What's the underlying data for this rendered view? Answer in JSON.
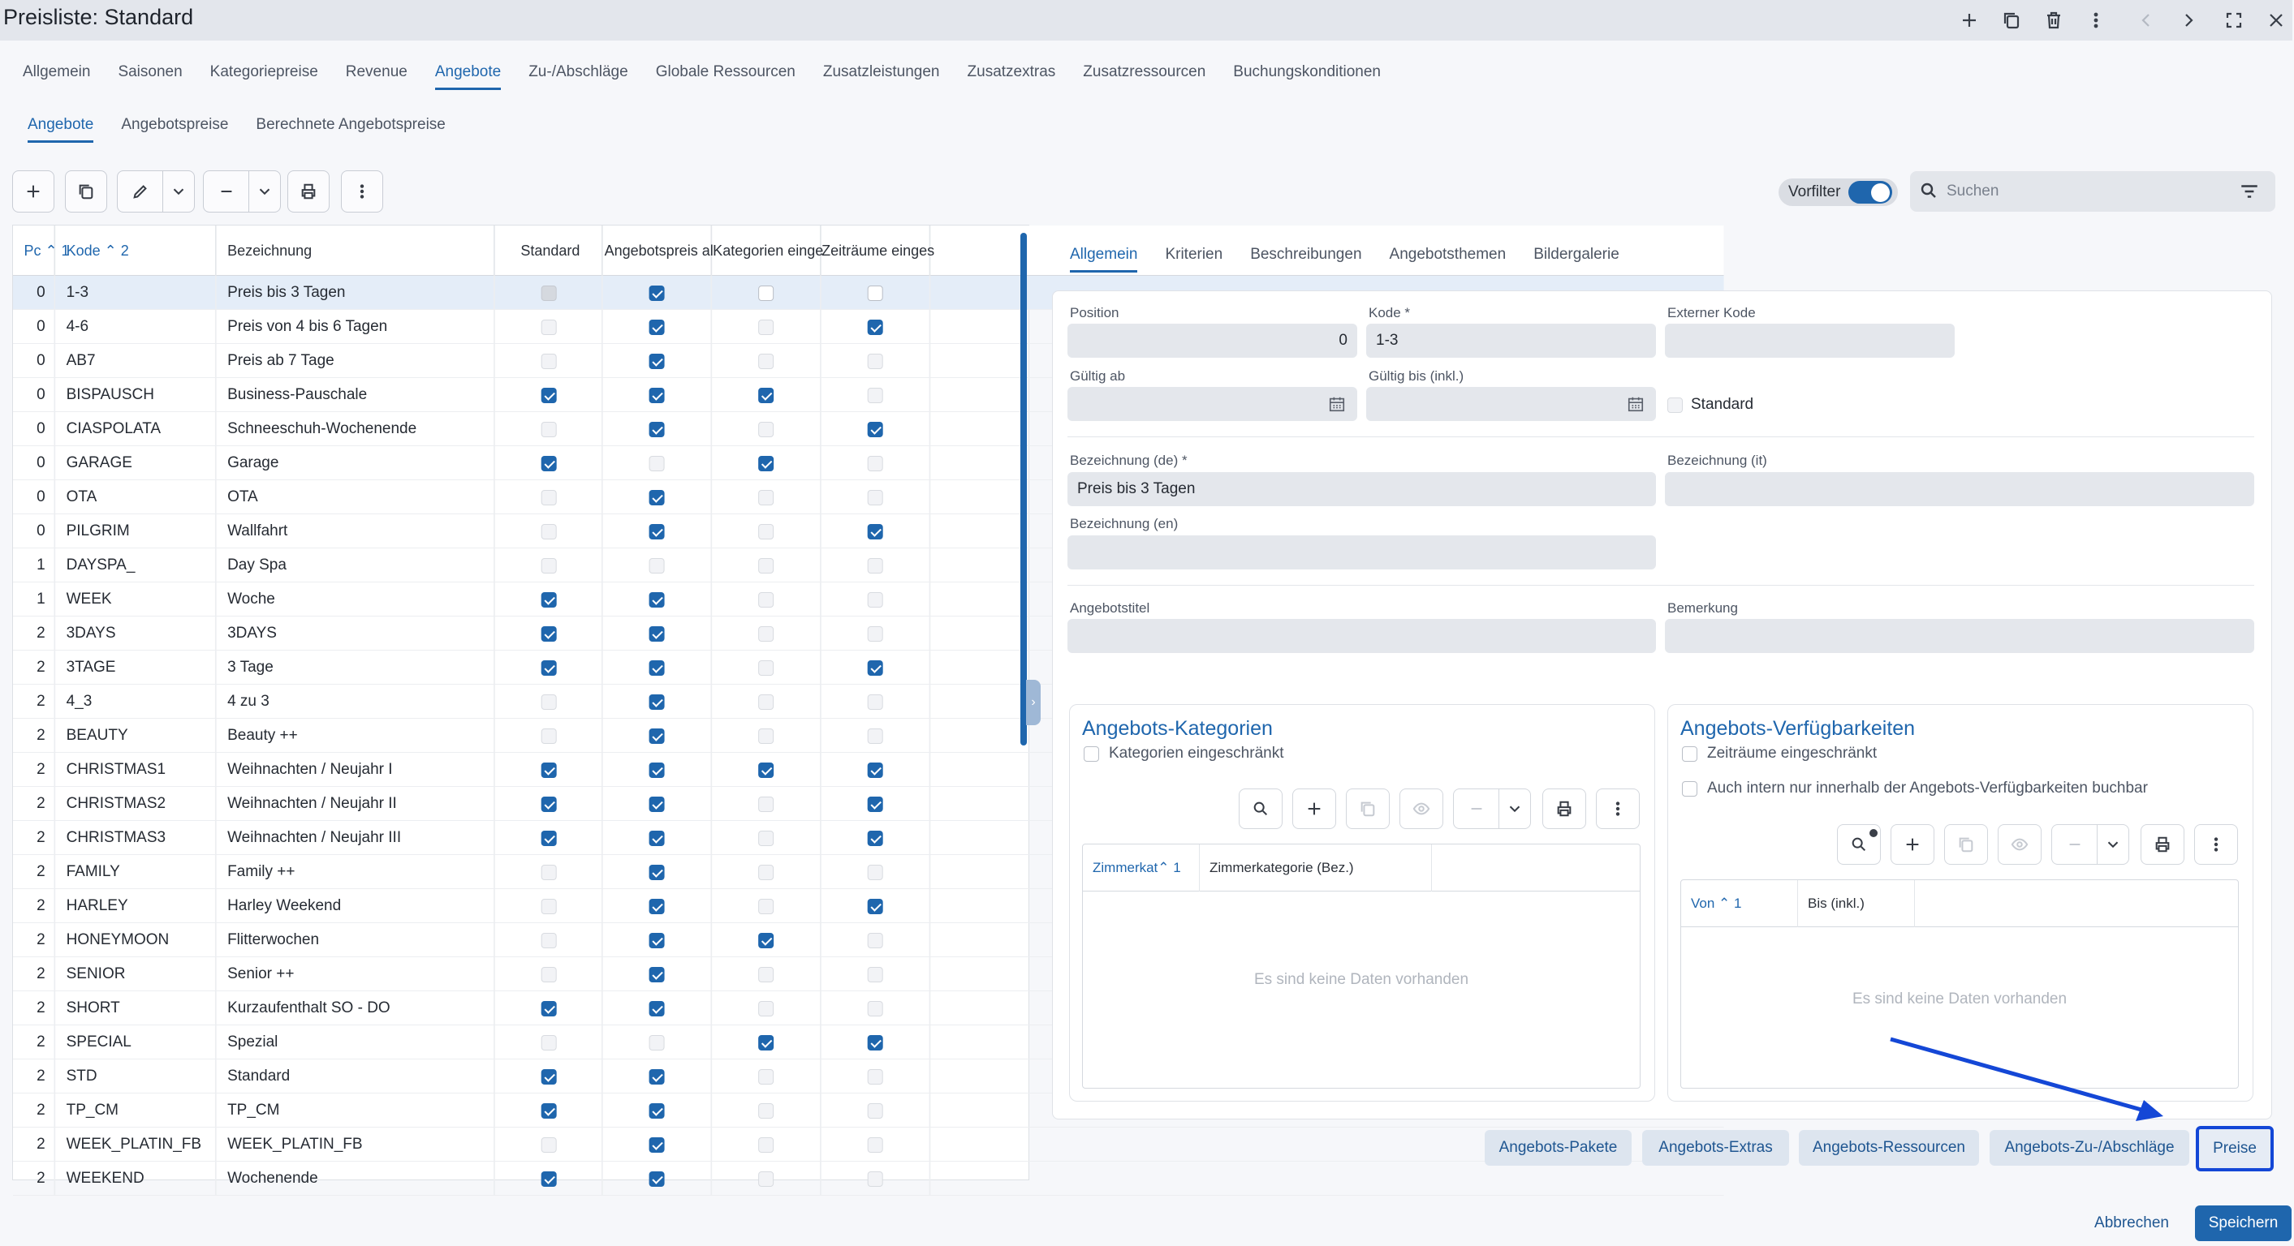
{
  "window": {
    "title": "Preisliste: Standard"
  },
  "main_tabs": [
    "Allgemein",
    "Saisonen",
    "Kategoriepreise",
    "Revenue",
    "Angebote",
    "Zu-/Abschläge",
    "Globale Ressourcen",
    "Zusatzleistungen",
    "Zusatzextras",
    "Zusatzressourcen",
    "Buchungskonditionen"
  ],
  "main_tabs_active": "Angebote",
  "sub_tabs": [
    "Angebote",
    "Angebotspreise",
    "Berechnete Angebotspreise"
  ],
  "sub_tabs_active": "Angebote",
  "toolbar": {
    "vorfilter_label": "Vorfilter",
    "vorfilter_on": true,
    "search_placeholder": "Suchen"
  },
  "grid": {
    "columns": [
      "Pc ⌃ 1",
      "Kode ⌃ 2",
      "Bezeichnung",
      "Standard",
      "Angebotspreis al",
      "Kategorien einge",
      "Zeiträume einges"
    ],
    "rows": [
      {
        "pos": "0",
        "code": "1-3",
        "name": "Preis bis 3 Tagen",
        "std": false,
        "ap": true,
        "kat": false,
        "zeit": false
      },
      {
        "pos": "0",
        "code": "4-6",
        "name": "Preis von 4 bis 6 Tagen",
        "std": false,
        "ap": true,
        "kat": false,
        "zeit": true
      },
      {
        "pos": "0",
        "code": "AB7",
        "name": "Preis ab 7 Tage",
        "std": false,
        "ap": true,
        "kat": false,
        "zeit": false
      },
      {
        "pos": "0",
        "code": "BISPAUSCH",
        "name": "Business-Pauschale",
        "std": true,
        "ap": true,
        "kat": true,
        "zeit": false
      },
      {
        "pos": "0",
        "code": "CIASPOLATA",
        "name": "Schneeschuh-Wochenende",
        "std": false,
        "ap": true,
        "kat": false,
        "zeit": true
      },
      {
        "pos": "0",
        "code": "GARAGE",
        "name": "Garage",
        "std": true,
        "ap": false,
        "kat": true,
        "zeit": false
      },
      {
        "pos": "0",
        "code": "OTA",
        "name": "OTA",
        "std": false,
        "ap": true,
        "kat": false,
        "zeit": false
      },
      {
        "pos": "0",
        "code": "PILGRIM",
        "name": "Wallfahrt",
        "std": false,
        "ap": true,
        "kat": false,
        "zeit": true
      },
      {
        "pos": "1",
        "code": "DAYSPA_",
        "name": "Day Spa",
        "std": false,
        "ap": false,
        "kat": false,
        "zeit": false
      },
      {
        "pos": "1",
        "code": "WEEK",
        "name": "Woche",
        "std": true,
        "ap": true,
        "kat": false,
        "zeit": false
      },
      {
        "pos": "2",
        "code": "3DAYS",
        "name": "3DAYS",
        "std": true,
        "ap": true,
        "kat": false,
        "zeit": false
      },
      {
        "pos": "2",
        "code": "3TAGE",
        "name": "3 Tage",
        "std": true,
        "ap": true,
        "kat": false,
        "zeit": true
      },
      {
        "pos": "2",
        "code": "4_3",
        "name": "4 zu 3",
        "std": false,
        "ap": true,
        "kat": false,
        "zeit": false
      },
      {
        "pos": "2",
        "code": "BEAUTY",
        "name": "Beauty ++",
        "std": false,
        "ap": true,
        "kat": false,
        "zeit": false
      },
      {
        "pos": "2",
        "code": "CHRISTMAS1",
        "name": "Weihnachten / Neujahr I",
        "std": true,
        "ap": true,
        "kat": true,
        "zeit": true
      },
      {
        "pos": "2",
        "code": "CHRISTMAS2",
        "name": "Weihnachten / Neujahr II",
        "std": true,
        "ap": true,
        "kat": false,
        "zeit": true
      },
      {
        "pos": "2",
        "code": "CHRISTMAS3",
        "name": "Weihnachten / Neujahr III",
        "std": true,
        "ap": true,
        "kat": false,
        "zeit": true
      },
      {
        "pos": "2",
        "code": "FAMILY",
        "name": "Family ++",
        "std": false,
        "ap": true,
        "kat": false,
        "zeit": false
      },
      {
        "pos": "2",
        "code": "HARLEY",
        "name": "Harley Weekend",
        "std": false,
        "ap": true,
        "kat": false,
        "zeit": true
      },
      {
        "pos": "2",
        "code": "HONEYMOON",
        "name": "Flitterwochen",
        "std": false,
        "ap": true,
        "kat": true,
        "zeit": false
      },
      {
        "pos": "2",
        "code": "SENIOR",
        "name": "Senior ++",
        "std": false,
        "ap": true,
        "kat": false,
        "zeit": false
      },
      {
        "pos": "2",
        "code": "SHORT",
        "name": "Kurzaufenthalt SO - DO",
        "std": true,
        "ap": true,
        "kat": false,
        "zeit": false
      },
      {
        "pos": "2",
        "code": "SPECIAL",
        "name": "Spezial",
        "std": false,
        "ap": false,
        "kat": true,
        "zeit": true
      },
      {
        "pos": "2",
        "code": "STD",
        "name": "Standard",
        "std": true,
        "ap": true,
        "kat": false,
        "zeit": false
      },
      {
        "pos": "2",
        "code": "TP_CM",
        "name": "TP_CM",
        "std": true,
        "ap": true,
        "kat": false,
        "zeit": false
      },
      {
        "pos": "2",
        "code": "WEEK_PLATIN_FB",
        "name": "WEEK_PLATIN_FB",
        "std": false,
        "ap": true,
        "kat": false,
        "zeit": false
      },
      {
        "pos": "2",
        "code": "WEEKEND",
        "name": "Wochenende",
        "std": true,
        "ap": true,
        "kat": false,
        "zeit": false
      }
    ]
  },
  "detail_tabs": [
    "Allgemein",
    "Kriterien",
    "Beschreibungen",
    "Angebotsthemen",
    "Bildergalerie"
  ],
  "detail_tabs_active": "Allgemein",
  "form": {
    "position_label": "Position",
    "position_value": "0",
    "kode_label": "Kode *",
    "kode_value": "1-3",
    "externer_kode_label": "Externer Kode",
    "externer_kode_value": "",
    "gueltig_ab_label": "Gültig ab",
    "gueltig_bis_label": "Gültig bis (inkl.)",
    "standard_label": "Standard",
    "bez_de_label": "Bezeichnung (de) *",
    "bez_de_value": "Preis bis 3 Tagen",
    "bez_it_label": "Bezeichnung (it)",
    "bez_en_label": "Bezeichnung (en)",
    "angebotstitel_label": "Angebotstitel",
    "bemerkung_label": "Bemerkung"
  },
  "kategorien": {
    "title": "Angebots-Kategorien",
    "check_label": "Kategorien eingeschränkt",
    "col1": "Zimmerkat⌃ 1",
    "col2": "Zimmerkategorie (Bez.)",
    "empty": "Es sind keine Daten vorhanden"
  },
  "verfuegbarkeiten": {
    "title": "Angebots-Verfügbarkeiten",
    "check1_label": "Zeiträume eingeschränkt",
    "check2_label": "Auch intern nur innerhalb der Angebots-Verfügbarkeiten buchbar",
    "col1": "Von ⌃ 1",
    "col2": "Bis (inkl.)",
    "empty": "Es sind keine Daten vorhanden"
  },
  "bottom_buttons": {
    "pakete": "Angebots-Pakete",
    "extras": "Angebots-Extras",
    "ressourcen": "Angebots-Ressourcen",
    "zuab": "Angebots-Zu-/Abschläge",
    "preise": "Preise"
  },
  "footer": {
    "cancel": "Abbrechen",
    "save": "Speichern"
  },
  "colors": {
    "accent": "#1f66ad",
    "highlight": "#1447d6"
  }
}
